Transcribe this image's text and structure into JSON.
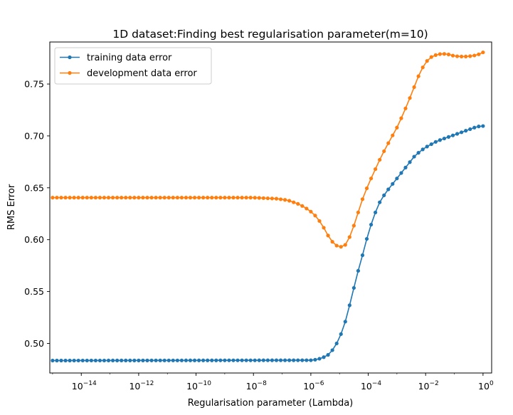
{
  "chart_data": {
    "type": "line",
    "title": "1D dataset:Finding best regularisation parameter(m=10)",
    "xlabel": "Regularisation parameter (Lambda)",
    "ylabel": "RMS Error",
    "xscale": "log",
    "xlim": [
      8e-16,
      2.0
    ],
    "ylim": [
      0.4715,
      0.7905
    ],
    "xticks": [
      {
        "value": 1e-14,
        "base": "10",
        "exp": "−14"
      },
      {
        "value": 1e-12,
        "base": "10",
        "exp": "−12"
      },
      {
        "value": 1e-10,
        "base": "10",
        "exp": "−10"
      },
      {
        "value": 1e-08,
        "base": "10",
        "exp": "−8"
      },
      {
        "value": 1e-06,
        "base": "10",
        "exp": "−6"
      },
      {
        "value": 0.0001,
        "base": "10",
        "exp": "−4"
      },
      {
        "value": 0.01,
        "base": "10",
        "exp": "−2"
      },
      {
        "value": 1,
        "base": "10",
        "exp": "0"
      }
    ],
    "yticks": [
      {
        "value": 0.5,
        "label": "0.50"
      },
      {
        "value": 0.55,
        "label": "0.55"
      },
      {
        "value": 0.6,
        "label": "0.60"
      },
      {
        "value": 0.65,
        "label": "0.65"
      },
      {
        "value": 0.7,
        "label": "0.70"
      },
      {
        "value": 0.75,
        "label": "0.75"
      }
    ],
    "legend_position": "top-left",
    "grid": false,
    "x_log10_range": [
      -15,
      0
    ],
    "points_per_series": 101,
    "series": [
      {
        "name": "training data error",
        "color": "#1f77b4",
        "marker": "circle",
        "curve_anchors": [
          [
            -15,
            0.4835
          ],
          [
            -6,
            0.4838
          ],
          [
            -5.8,
            0.4845
          ],
          [
            -5.6,
            0.486
          ],
          [
            -5.4,
            0.489
          ],
          [
            -5.2,
            0.495
          ],
          [
            -5.0,
            0.505
          ],
          [
            -4.8,
            0.521
          ],
          [
            -4.6,
            0.542
          ],
          [
            -4.4,
            0.565
          ],
          [
            -4.2,
            0.585
          ],
          [
            -4.0,
            0.606
          ],
          [
            -3.8,
            0.623
          ],
          [
            -3.6,
            0.636
          ],
          [
            -3.4,
            0.645
          ],
          [
            -3.2,
            0.652
          ],
          [
            -3.0,
            0.659
          ],
          [
            -2.8,
            0.666
          ],
          [
            -2.6,
            0.673
          ],
          [
            -2.4,
            0.68
          ],
          [
            -2.2,
            0.685
          ],
          [
            -2.0,
            0.689
          ],
          [
            -1.8,
            0.692
          ],
          [
            -1.6,
            0.695
          ],
          [
            -1.4,
            0.697
          ],
          [
            -1.2,
            0.699
          ],
          [
            -1.0,
            0.701
          ],
          [
            -0.8,
            0.703
          ],
          [
            -0.6,
            0.705
          ],
          [
            -0.4,
            0.707
          ],
          [
            -0.2,
            0.709
          ],
          [
            0,
            0.7095
          ]
        ]
      },
      {
        "name": "development data error",
        "color": "#ff7f0e",
        "marker": "circle",
        "curve_anchors": [
          [
            -15,
            0.6405
          ],
          [
            -8,
            0.6405
          ],
          [
            -7.6,
            0.64
          ],
          [
            -7.2,
            0.6395
          ],
          [
            -6.8,
            0.638
          ],
          [
            -6.6,
            0.636
          ],
          [
            -6.4,
            0.634
          ],
          [
            -6.2,
            0.631
          ],
          [
            -6.0,
            0.627
          ],
          [
            -5.8,
            0.622
          ],
          [
            -5.6,
            0.614
          ],
          [
            -5.4,
            0.604
          ],
          [
            -5.2,
            0.596
          ],
          [
            -5.0,
            0.5925
          ],
          [
            -4.8,
            0.595
          ],
          [
            -4.6,
            0.605
          ],
          [
            -4.4,
            0.622
          ],
          [
            -4.2,
            0.639
          ],
          [
            -4.0,
            0.653
          ],
          [
            -3.8,
            0.665
          ],
          [
            -3.6,
            0.677
          ],
          [
            -3.4,
            0.688
          ],
          [
            -3.2,
            0.698
          ],
          [
            -3.0,
            0.708
          ],
          [
            -2.8,
            0.72
          ],
          [
            -2.6,
            0.733
          ],
          [
            -2.4,
            0.747
          ],
          [
            -2.2,
            0.761
          ],
          [
            -2.0,
            0.771
          ],
          [
            -1.8,
            0.776
          ],
          [
            -1.6,
            0.7785
          ],
          [
            -1.4,
            0.7792
          ],
          [
            -1.2,
            0.7785
          ],
          [
            -1.0,
            0.777
          ],
          [
            -0.8,
            0.7765
          ],
          [
            -0.6,
            0.7765
          ],
          [
            -0.4,
            0.777
          ],
          [
            -0.2,
            0.778
          ],
          [
            0,
            0.7805
          ]
        ]
      }
    ]
  }
}
